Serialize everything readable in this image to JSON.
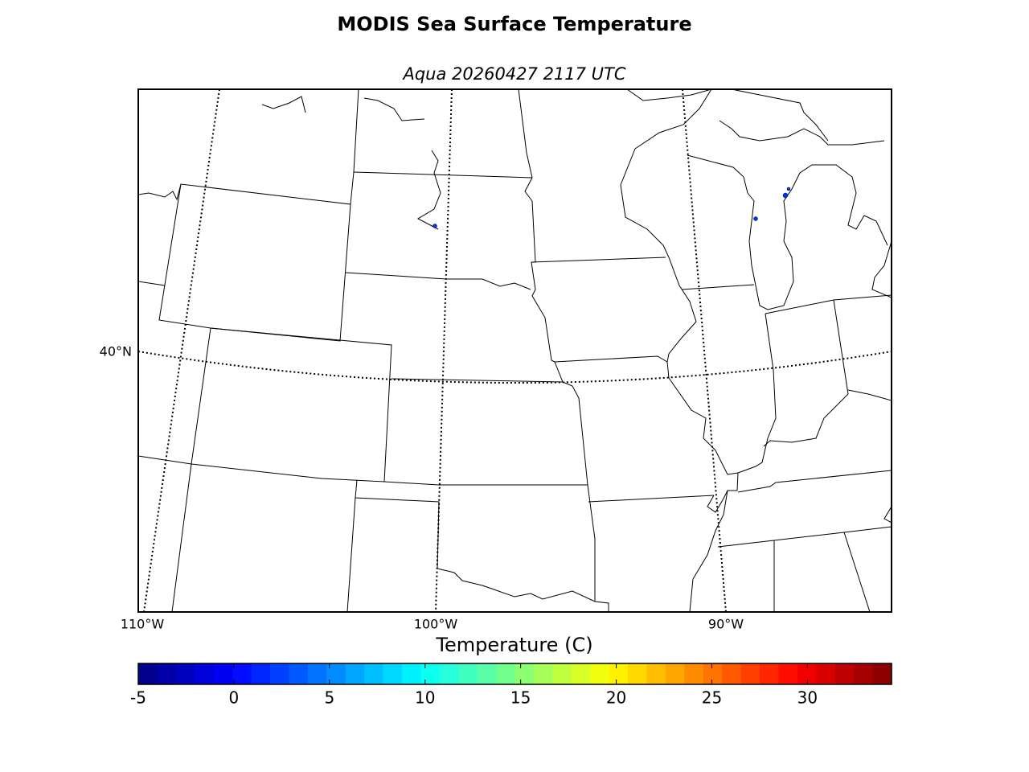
{
  "title": "MODIS Sea Surface Temperature",
  "subtitle": "Aqua 20260427 2117 UTC",
  "map": {
    "lat_labels": [
      "40°N"
    ],
    "lon_labels": [
      "110°W",
      "100°W",
      "90°W"
    ]
  },
  "chart_data": {
    "type": "colorbar",
    "xlabel": "Temperature (C)",
    "colormap": "jet",
    "xlim": [
      -5,
      34.4
    ],
    "xticks": [
      -5,
      0,
      5,
      10,
      15,
      20,
      25,
      30
    ]
  }
}
